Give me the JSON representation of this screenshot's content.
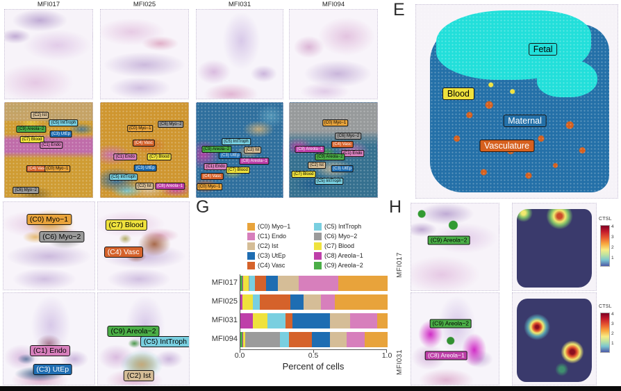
{
  "samples": [
    "MFI017",
    "MFI025",
    "MFI031",
    "MFI094"
  ],
  "clusters": [
    {
      "id": "C0",
      "label": "(C0) Myo−1",
      "color": "#E8A33B",
      "text": "#000000"
    },
    {
      "id": "C1",
      "label": "(C1) Endo",
      "color": "#D77FBC",
      "text": "#000000"
    },
    {
      "id": "C2",
      "label": "(C2) Ist",
      "color": "#D5BD97",
      "text": "#000000"
    },
    {
      "id": "C3",
      "label": "(C3) UtEp",
      "color": "#1E6DB2",
      "text": "#FFFFFF"
    },
    {
      "id": "C4",
      "label": "(C4) Vasc",
      "color": "#D5622B",
      "text": "#FFFFFF"
    },
    {
      "id": "C5",
      "label": "(C5) IntTroph",
      "color": "#79CFE0",
      "text": "#000000"
    },
    {
      "id": "C6",
      "label": "(C6) Myo−2",
      "color": "#9B9B9B",
      "text": "#000000"
    },
    {
      "id": "C7",
      "label": "(C7) Blood",
      "color": "#EFE23D",
      "text": "#000000"
    },
    {
      "id": "C8",
      "label": "(C8) Areola−1",
      "color": "#BE3FA9",
      "text": "#FFFFFF"
    },
    {
      "id": "C9",
      "label": "(C9) Areola−2",
      "color": "#4BAE47",
      "text": "#000000"
    }
  ],
  "panel_e": {
    "letter": "E",
    "regions": [
      {
        "name": "fetal",
        "label": "Fetal",
        "color": "#22DFDA",
        "text": "#000000"
      },
      {
        "name": "blood",
        "label": "Blood",
        "color": "#EFE23D",
        "text": "#000000"
      },
      {
        "name": "maternal",
        "label": "Maternal",
        "color": "#2470A8",
        "text": "#FFFFFF"
      },
      {
        "name": "vasculature",
        "label": "Vasculature",
        "color": "#D6601E",
        "text": "#FFFFFF"
      }
    ]
  },
  "panel_g": {
    "letter": "G",
    "xlabel": "Percent of cells",
    "xticks": [
      "0.0",
      "0.5",
      "1.0"
    ]
  },
  "panel_h": {
    "letter": "H",
    "gene": "CTSL",
    "colorbar_ticks": [
      "4",
      "3",
      "2",
      "1"
    ],
    "rows": [
      {
        "sample": "MFI017"
      },
      {
        "sample": "MFI031"
      }
    ]
  },
  "chart_data": {
    "type": "bar",
    "subtype": "horizontal_stacked",
    "title": "",
    "xlabel": "Percent of cells",
    "ylabel": "",
    "xlim": [
      0.0,
      1.0
    ],
    "xticks": [
      0.0,
      0.5,
      1.0
    ],
    "legend_position": "top",
    "categories": [
      "MFI017",
      "MFI025",
      "MFI031",
      "MFI094"
    ],
    "stack_order": [
      "C9",
      "C8",
      "C7",
      "C6",
      "C5",
      "C4",
      "C3",
      "C2",
      "C1",
      "C0"
    ],
    "series": [
      {
        "cluster": "C0",
        "name": "(C0) Myo−1",
        "values": [
          0.335,
          0.36,
          0.07,
          0.155
        ]
      },
      {
        "cluster": "C1",
        "name": "(C1) Endo",
        "values": [
          0.27,
          0.093,
          0.183,
          0.122
        ]
      },
      {
        "cluster": "C2",
        "name": "(C2) Ist",
        "values": [
          0.14,
          0.119,
          0.139,
          0.114
        ]
      },
      {
        "cluster": "C3",
        "name": "(C3) UtEp",
        "values": [
          0.08,
          0.09,
          0.253,
          0.122
        ]
      },
      {
        "cluster": "C4",
        "name": "(C4) Vasc",
        "values": [
          0.075,
          0.205,
          0.049,
          0.155
        ]
      },
      {
        "cluster": "C5",
        "name": "(C5) IntTroph",
        "values": [
          0.04,
          0.046,
          0.122,
          0.065
        ]
      },
      {
        "cluster": "C6",
        "name": "(C6) Myo−2",
        "values": [
          0.005,
          0.002,
          0.0,
          0.232
        ]
      },
      {
        "cluster": "C7",
        "name": "(C7) Blood",
        "values": [
          0.035,
          0.072,
          0.098,
          0.018
        ]
      },
      {
        "cluster": "C8",
        "name": "(C8) Areola−1",
        "values": [
          0.005,
          0.013,
          0.086,
          0.001
        ]
      },
      {
        "cluster": "C9",
        "name": "(C9) Areola−2",
        "values": [
          0.015,
          0.0,
          0.0,
          0.016
        ]
      }
    ]
  }
}
